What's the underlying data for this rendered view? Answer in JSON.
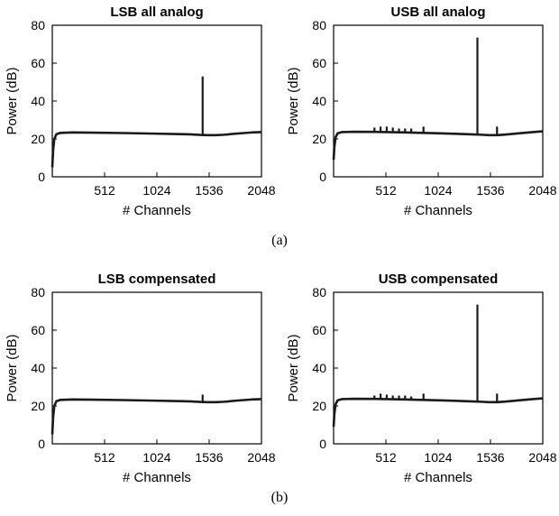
{
  "captions": [
    "(a)",
    "(b)"
  ],
  "chart_data": [
    {
      "type": "line",
      "title": "LSB all analog",
      "xlabel": "# Channels",
      "ylabel": "Power (dB)",
      "xlim": [
        0,
        2048
      ],
      "ylim": [
        0,
        80
      ],
      "xticks": [
        512,
        1024,
        1536,
        2048
      ],
      "yticks": [
        0,
        20,
        40,
        60,
        80
      ],
      "grid": false,
      "series": [
        {
          "color": "#1a1a1a",
          "baseline": [
            [
              0,
              5
            ],
            [
              8,
              14
            ],
            [
              20,
              20
            ],
            [
              40,
              22.5
            ],
            [
              80,
              23.2
            ],
            [
              200,
              23.4
            ],
            [
              400,
              23.3
            ],
            [
              700,
              23.1
            ],
            [
              1000,
              22.8
            ],
            [
              1200,
              22.6
            ],
            [
              1350,
              22.4
            ],
            [
              1450,
              22.1
            ],
            [
              1520,
              22.0
            ],
            [
              1600,
              22.0
            ],
            [
              1680,
              22.2
            ],
            [
              1800,
              22.8
            ],
            [
              1950,
              23.4
            ],
            [
              2048,
              23.6
            ]
          ],
          "spikes": [
            [
              1472,
              53
            ]
          ]
        }
      ]
    },
    {
      "type": "line",
      "title": "USB  all analog",
      "xlabel": "# Channels",
      "ylabel": "Power (dB)",
      "xlim": [
        0,
        2048
      ],
      "ylim": [
        0,
        80
      ],
      "xticks": [
        512,
        1024,
        1536,
        2048
      ],
      "yticks": [
        0,
        20,
        40,
        60,
        80
      ],
      "grid": false,
      "series": [
        {
          "color": "#1a1a1a",
          "baseline": [
            [
              0,
              9
            ],
            [
              8,
              16
            ],
            [
              20,
              21
            ],
            [
              40,
              23
            ],
            [
              80,
              23.6
            ],
            [
              200,
              23.8
            ],
            [
              400,
              23.7
            ],
            [
              700,
              23.4
            ],
            [
              1000,
              23.0
            ],
            [
              1200,
              22.7
            ],
            [
              1350,
              22.4
            ],
            [
              1450,
              22.2
            ],
            [
              1520,
              22.0
            ],
            [
              1600,
              22.0
            ],
            [
              1680,
              22.3
            ],
            [
              1800,
              22.9
            ],
            [
              1950,
              23.6
            ],
            [
              2048,
              24.0
            ]
          ],
          "spikes": [
            [
              400,
              26
            ],
            [
              460,
              26.5
            ],
            [
              520,
              26.5
            ],
            [
              580,
              26
            ],
            [
              640,
              25.5
            ],
            [
              700,
              25.5
            ],
            [
              760,
              25.5
            ],
            [
              880,
              26.5
            ],
            [
              1408,
              73.5
            ],
            [
              1600,
              26.5
            ]
          ]
        }
      ]
    },
    {
      "type": "line",
      "title": "LSB compensated",
      "xlabel": "# Channels",
      "ylabel": "Power (dB)",
      "xlim": [
        0,
        2048
      ],
      "ylim": [
        0,
        80
      ],
      "xticks": [
        512,
        1024,
        1536,
        2048
      ],
      "yticks": [
        0,
        20,
        40,
        60,
        80
      ],
      "grid": false,
      "series": [
        {
          "color": "#1a1a1a",
          "baseline": [
            [
              0,
              5
            ],
            [
              8,
              14
            ],
            [
              20,
              20
            ],
            [
              40,
              22.5
            ],
            [
              80,
              23.2
            ],
            [
              200,
              23.4
            ],
            [
              400,
              23.3
            ],
            [
              700,
              23.1
            ],
            [
              1000,
              22.8
            ],
            [
              1200,
              22.6
            ],
            [
              1350,
              22.4
            ],
            [
              1450,
              22.1
            ],
            [
              1520,
              22.0
            ],
            [
              1600,
              22.0
            ],
            [
              1680,
              22.2
            ],
            [
              1800,
              22.8
            ],
            [
              1950,
              23.4
            ],
            [
              2048,
              23.6
            ]
          ],
          "spikes": [
            [
              1472,
              26
            ]
          ]
        }
      ]
    },
    {
      "type": "line",
      "title": "USB compensated",
      "xlabel": "# Channels",
      "ylabel": "Power (dB)",
      "xlim": [
        0,
        2048
      ],
      "ylim": [
        0,
        80
      ],
      "xticks": [
        512,
        1024,
        1536,
        2048
      ],
      "yticks": [
        0,
        20,
        40,
        60,
        80
      ],
      "grid": false,
      "series": [
        {
          "color": "#1a1a1a",
          "baseline": [
            [
              0,
              9
            ],
            [
              8,
              16
            ],
            [
              20,
              21
            ],
            [
              40,
              23
            ],
            [
              80,
              23.6
            ],
            [
              200,
              23.8
            ],
            [
              400,
              23.7
            ],
            [
              700,
              23.4
            ],
            [
              1000,
              23.0
            ],
            [
              1200,
              22.7
            ],
            [
              1350,
              22.4
            ],
            [
              1450,
              22.2
            ],
            [
              1520,
              22.0
            ],
            [
              1600,
              22.0
            ],
            [
              1680,
              22.3
            ],
            [
              1800,
              22.9
            ],
            [
              1950,
              23.6
            ],
            [
              2048,
              24.0
            ]
          ],
          "spikes": [
            [
              400,
              25.5
            ],
            [
              460,
              26.5
            ],
            [
              520,
              26
            ],
            [
              580,
              25.5
            ],
            [
              640,
              25.5
            ],
            [
              700,
              25.5
            ],
            [
              760,
              25
            ],
            [
              880,
              26.5
            ],
            [
              1408,
              73.5
            ],
            [
              1600,
              26.5
            ]
          ]
        }
      ]
    }
  ]
}
